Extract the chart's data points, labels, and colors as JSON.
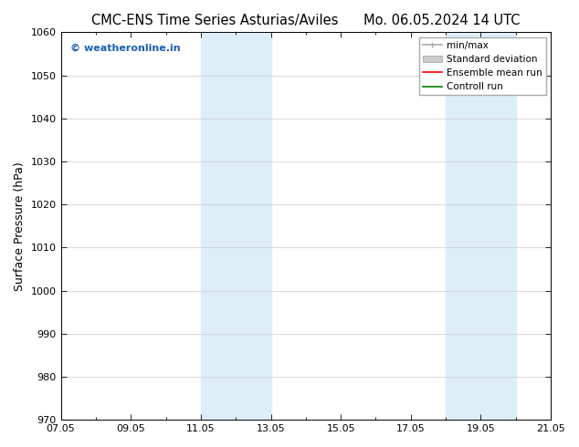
{
  "title_left": "CMC-ENS Time Series Asturias/Aviles",
  "title_right": "Mo. 06.05.2024 14 UTC",
  "ylabel": "Surface Pressure (hPa)",
  "ylim": [
    970,
    1060
  ],
  "yticks": [
    970,
    980,
    990,
    1000,
    1010,
    1020,
    1030,
    1040,
    1050,
    1060
  ],
  "xlim": [
    0,
    14
  ],
  "xtick_labels": [
    "07.05",
    "09.05",
    "11.05",
    "13.05",
    "15.05",
    "17.05",
    "19.05",
    "21.05"
  ],
  "xtick_positions": [
    0,
    2,
    4,
    6,
    8,
    10,
    12,
    14
  ],
  "shaded_regions": [
    {
      "start": 4,
      "end": 6,
      "color": "#ddeef8"
    },
    {
      "start": 11,
      "end": 13,
      "color": "#ddeef8"
    }
  ],
  "watermark_text": "© weatheronline.in",
  "watermark_color": "#1a5fb4",
  "legend_items": [
    {
      "label": "min/max",
      "color": "#aaaaaa"
    },
    {
      "label": "Standard deviation",
      "color": "#cccccc"
    },
    {
      "label": "Ensemble mean run",
      "color": "red"
    },
    {
      "label": "Controll run",
      "color": "green"
    }
  ],
  "background_color": "#ffffff",
  "grid_color": "#cccccc",
  "title_fontsize": 10.5,
  "ylabel_fontsize": 9,
  "tick_fontsize": 8,
  "watermark_fontsize": 8,
  "legend_fontsize": 7.5
}
